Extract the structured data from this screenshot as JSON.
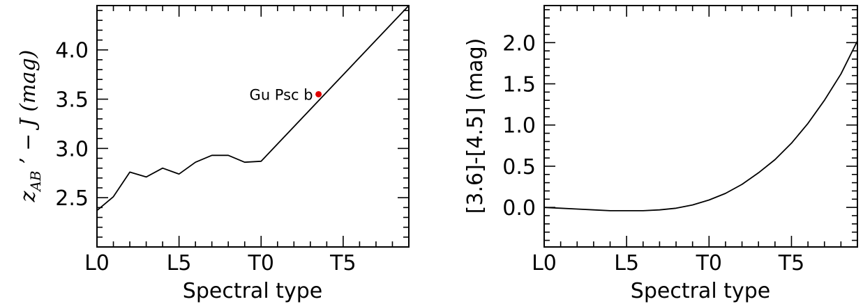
{
  "chart_data": [
    {
      "type": "line",
      "xlabel": "Spectral type",
      "ylabel": {
        "base": "z",
        "sub": "AB",
        "rest": " ’ − J (mag)"
      },
      "xlim": [
        0,
        19
      ],
      "ylim": [
        2.0,
        4.45
      ],
      "x_ticks": [
        {
          "x": 0,
          "label": "L0"
        },
        {
          "x": 5,
          "label": "L5"
        },
        {
          "x": 10,
          "label": "T0"
        },
        {
          "x": 15,
          "label": "T5"
        }
      ],
      "y_ticks": [
        {
          "y": 2.5,
          "label": "2.5"
        },
        {
          "y": 3.0,
          "label": "3.0"
        },
        {
          "y": 3.5,
          "label": "3.5"
        },
        {
          "y": 4.0,
          "label": "4.0"
        }
      ],
      "series": [
        {
          "x": [
            0,
            1,
            2,
            3,
            4,
            5,
            6,
            7,
            8,
            9,
            10,
            19
          ],
          "y": [
            2.37,
            2.51,
            2.76,
            2.71,
            2.8,
            2.74,
            2.86,
            2.93,
            2.93,
            2.86,
            2.87,
            4.45
          ]
        }
      ],
      "points": [
        {
          "x": 13.5,
          "y": 3.55,
          "label": "Gu Psc b",
          "color": "#e00000"
        }
      ]
    },
    {
      "type": "line",
      "xlabel": "Spectral type",
      "ylabel": "[3.6]-[4.5] (mag)",
      "xlim": [
        0,
        19
      ],
      "ylim": [
        -0.48,
        2.45
      ],
      "x_ticks": [
        {
          "x": 0,
          "label": "L0"
        },
        {
          "x": 5,
          "label": "L5"
        },
        {
          "x": 10,
          "label": "T0"
        },
        {
          "x": 15,
          "label": "T5"
        }
      ],
      "y_ticks": [
        {
          "y": 0.0,
          "label": "0.0"
        },
        {
          "y": 0.5,
          "label": "0.5"
        },
        {
          "y": 1.0,
          "label": "1.0"
        },
        {
          "y": 1.5,
          "label": "1.5"
        },
        {
          "y": 2.0,
          "label": "2.0"
        }
      ],
      "series": [
        {
          "x": [
            0,
            1,
            2,
            3,
            4,
            5,
            6,
            7,
            8,
            9,
            10,
            11,
            12,
            13,
            14,
            15,
            16,
            17,
            18,
            19
          ],
          "y": [
            0.0,
            -0.01,
            -0.02,
            -0.03,
            -0.04,
            -0.04,
            -0.04,
            -0.03,
            -0.01,
            0.03,
            0.09,
            0.17,
            0.28,
            0.42,
            0.58,
            0.78,
            1.02,
            1.3,
            1.62,
            2.02
          ]
        }
      ]
    }
  ]
}
